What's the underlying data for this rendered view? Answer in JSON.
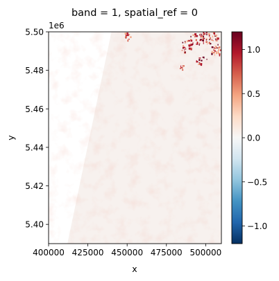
{
  "chart_data": {
    "type": "heatmap",
    "title": "band = 1, spatial_ref = 0",
    "xlabel": "x",
    "ylabel": "y",
    "y_offset_label": "1e6",
    "xlim": [
      400000,
      510000
    ],
    "ylim": [
      5390000,
      5500000
    ],
    "x_ticks": [
      400000,
      425000,
      450000,
      475000,
      500000
    ],
    "x_tick_labels": [
      "400000",
      "425000",
      "450000",
      "475000",
      "500000"
    ],
    "y_ticks": [
      5400000,
      5420000,
      5440000,
      5460000,
      5480000,
      5500000
    ],
    "y_tick_labels": [
      "5.40",
      "5.42",
      "5.44",
      "5.46",
      "5.48",
      "5.50"
    ],
    "colorbar": {
      "colormap": "RdBu_r",
      "vmin": -1.2,
      "vmax": 1.2,
      "ticks": [
        -1.0,
        -0.5,
        0.0,
        0.5,
        1.0
      ],
      "tick_labels": [
        "−1.0",
        "−0.5",
        "0.0",
        "0.5",
        "1.0"
      ]
    },
    "data_extent": {
      "left_edge_top_x": 440000,
      "left_edge_bottom_x": 412000,
      "right_x": 510000,
      "background_value": 0.05,
      "high_value_region": "top-right corner, values near 1.0"
    },
    "grid": false
  }
}
